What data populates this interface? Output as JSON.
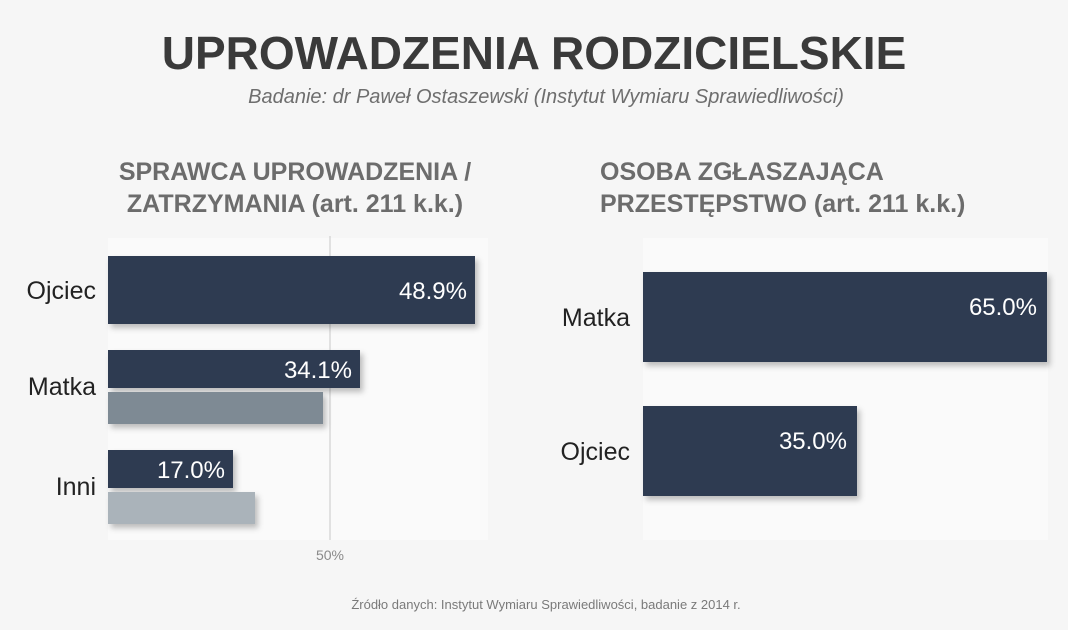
{
  "title": "UPROWADZENIA RODZICIELSKIE",
  "subtitle": "Badanie: dr Paweł Ostaszewski (Instytut Wymiaru Sprawiedliwości)",
  "left_panel": {
    "title_line1": "SPRAWCA UPROWADZENIA /",
    "title_line2": "ZATRZYMANIA (art. 211 k.k.)"
  },
  "right_panel": {
    "title_line1": "OSOBA ZGŁASZAJĄCA",
    "title_line2": "PRZESTĘPSTWO (art. 211 k.k.)"
  },
  "source": "Źródło danych: Instytut Wymiaru Sprawiedliwości, badanie z 2014 r.",
  "colors": {
    "primary_bar": "#2d3a51",
    "secondary_bar_matka": "#7e8a94",
    "secondary_bar_inni": "#aab3ba",
    "gridline": "#c8c8c8",
    "label_text": "#222222",
    "value_text": "#ffffff"
  },
  "chart_data": [
    {
      "type": "bar",
      "orientation": "horizontal",
      "title": "SPRAWCA UPROWADZENIA / ZATRZYMANIA (art. 211 k.k.)",
      "categories": [
        "Ojciec",
        "Matka",
        "Inni"
      ],
      "series": [
        {
          "values": [
            48.9,
            34.1,
            17.0
          ],
          "labels": [
            "48.9%",
            "34.1%",
            "17.0%"
          ]
        },
        {
          "values": [
            null,
            29.0,
            19.5
          ]
        }
      ],
      "xlim": [
        0,
        50
      ],
      "reference_line": {
        "value": 50,
        "label": "50%"
      },
      "grid": false
    },
    {
      "type": "bar",
      "orientation": "horizontal",
      "title": "OSOBA ZGŁASZAJĄCA PRZESTĘPSTWO (art. 211 k.k.)",
      "categories": [
        "Matka",
        "Ojciec"
      ],
      "series": [
        {
          "values": [
            65.0,
            35.0
          ],
          "labels": [
            "65.0%",
            "35.0%"
          ]
        }
      ],
      "xlim": [
        0,
        65
      ],
      "grid": false
    }
  ]
}
